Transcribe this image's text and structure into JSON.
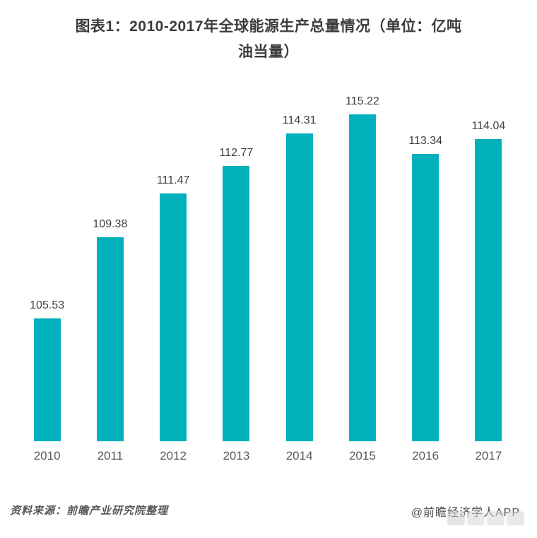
{
  "header": {
    "title_line1": "图表1：2010-2017年全球能源生产总量情况（单位：亿吨",
    "title_line2": "油当量）"
  },
  "chart_data": {
    "type": "bar",
    "title": "图表1：2010-2017年全球能源生产总量情况（单位：亿吨油当量）",
    "unit": "亿吨油当量",
    "categories": [
      "2010",
      "2011",
      "2012",
      "2013",
      "2014",
      "2015",
      "2016",
      "2017"
    ],
    "values": [
      105.53,
      109.38,
      111.47,
      112.77,
      114.31,
      115.22,
      113.34,
      114.04
    ],
    "value_labels": [
      "105.53",
      "109.38",
      "111.47",
      "112.77",
      "114.31",
      "115.22",
      "113.34",
      "114.04"
    ],
    "xlabel": "",
    "ylabel": "",
    "ylim": [
      99.7,
      116.5
    ],
    "grid": false,
    "legend": false,
    "bar_color": "#00b1bc",
    "value_label_color": "#404040",
    "axis_label_color": "#595959"
  },
  "footer": {
    "source": "资料来源：前瞻产业研究院整理",
    "credit": "@前瞻经济学人APP"
  }
}
